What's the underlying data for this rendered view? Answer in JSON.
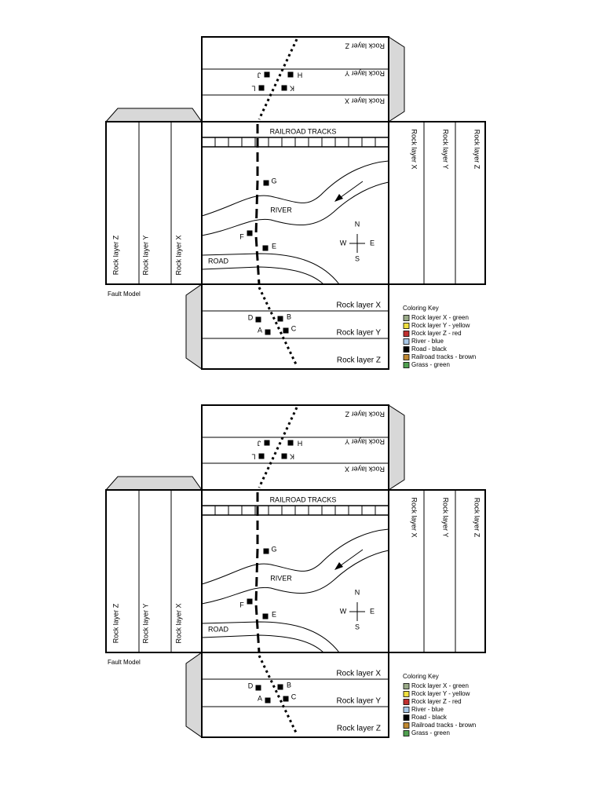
{
  "models": [
    {
      "top_layers": [
        "Rock layer Z",
        "Rock layer Y",
        "Rock layer X"
      ],
      "top_points": [
        "H",
        "J",
        "K",
        "L"
      ],
      "railroad": "RAILROAD TRACKS",
      "river": "RIVER",
      "road": "ROAD",
      "center_points": [
        "G",
        "F",
        "E"
      ],
      "compass": [
        "N",
        "W",
        "E",
        "S"
      ],
      "left_layers": [
        "Rock layer Z",
        "Rock layer Y",
        "Rock layer X"
      ],
      "right_layers": [
        "Rock layer X",
        "Rock layer Y",
        "Rock layer Z"
      ],
      "bottom_layers": [
        "Rock layer X",
        "Rock layer Y",
        "Rock layer Z"
      ],
      "bottom_points": [
        "D",
        "B",
        "A",
        "C"
      ],
      "caption": "Fault Model",
      "key": {
        "title": "Coloring Key",
        "items": [
          {
            "label": "Rock layer X - green",
            "color": "#9aaa88"
          },
          {
            "label": "Rock layer Y - yellow",
            "color": "#f0e040"
          },
          {
            "label": "Rock layer Z - red",
            "color": "#c03030"
          },
          {
            "label": "River - blue",
            "color": "#a8c8e8"
          },
          {
            "label": "Road - black",
            "color": "#000000"
          },
          {
            "label": "Railroad tracks - brown",
            "color": "#c08830"
          },
          {
            "label": "Grass - green",
            "color": "#50a050"
          }
        ]
      }
    },
    {
      "top_layers": [
        "Rock layer Z",
        "Rock layer Y",
        "Rock layer X"
      ],
      "top_points": [
        "H",
        "J",
        "K",
        "L"
      ],
      "railroad": "RAILROAD TRACKS",
      "river": "RIVER",
      "road": "ROAD",
      "center_points": [
        "G",
        "F",
        "E"
      ],
      "compass": [
        "N",
        "W",
        "E",
        "S"
      ],
      "left_layers": [
        "Rock layer Z",
        "Rock layer Y",
        "Rock layer X"
      ],
      "right_layers": [
        "Rock layer X",
        "Rock layer Y",
        "Rock layer Z"
      ],
      "bottom_layers": [
        "Rock layer X",
        "Rock layer Y",
        "Rock layer Z"
      ],
      "bottom_points": [
        "D",
        "B",
        "A",
        "C"
      ],
      "caption": "Fault Model",
      "key": {
        "title": "Coloring Key",
        "items": [
          {
            "label": "Rock layer X - green",
            "color": "#9aaa88"
          },
          {
            "label": "Rock layer Y - yellow",
            "color": "#f0e040"
          },
          {
            "label": "Rock layer Z - red",
            "color": "#c03030"
          },
          {
            "label": "River - blue",
            "color": "#a8c8e8"
          },
          {
            "label": "Road - black",
            "color": "#000000"
          },
          {
            "label": "Railroad tracks - brown",
            "color": "#c08830"
          },
          {
            "label": "Grass - green",
            "color": "#50a050"
          }
        ]
      }
    }
  ]
}
